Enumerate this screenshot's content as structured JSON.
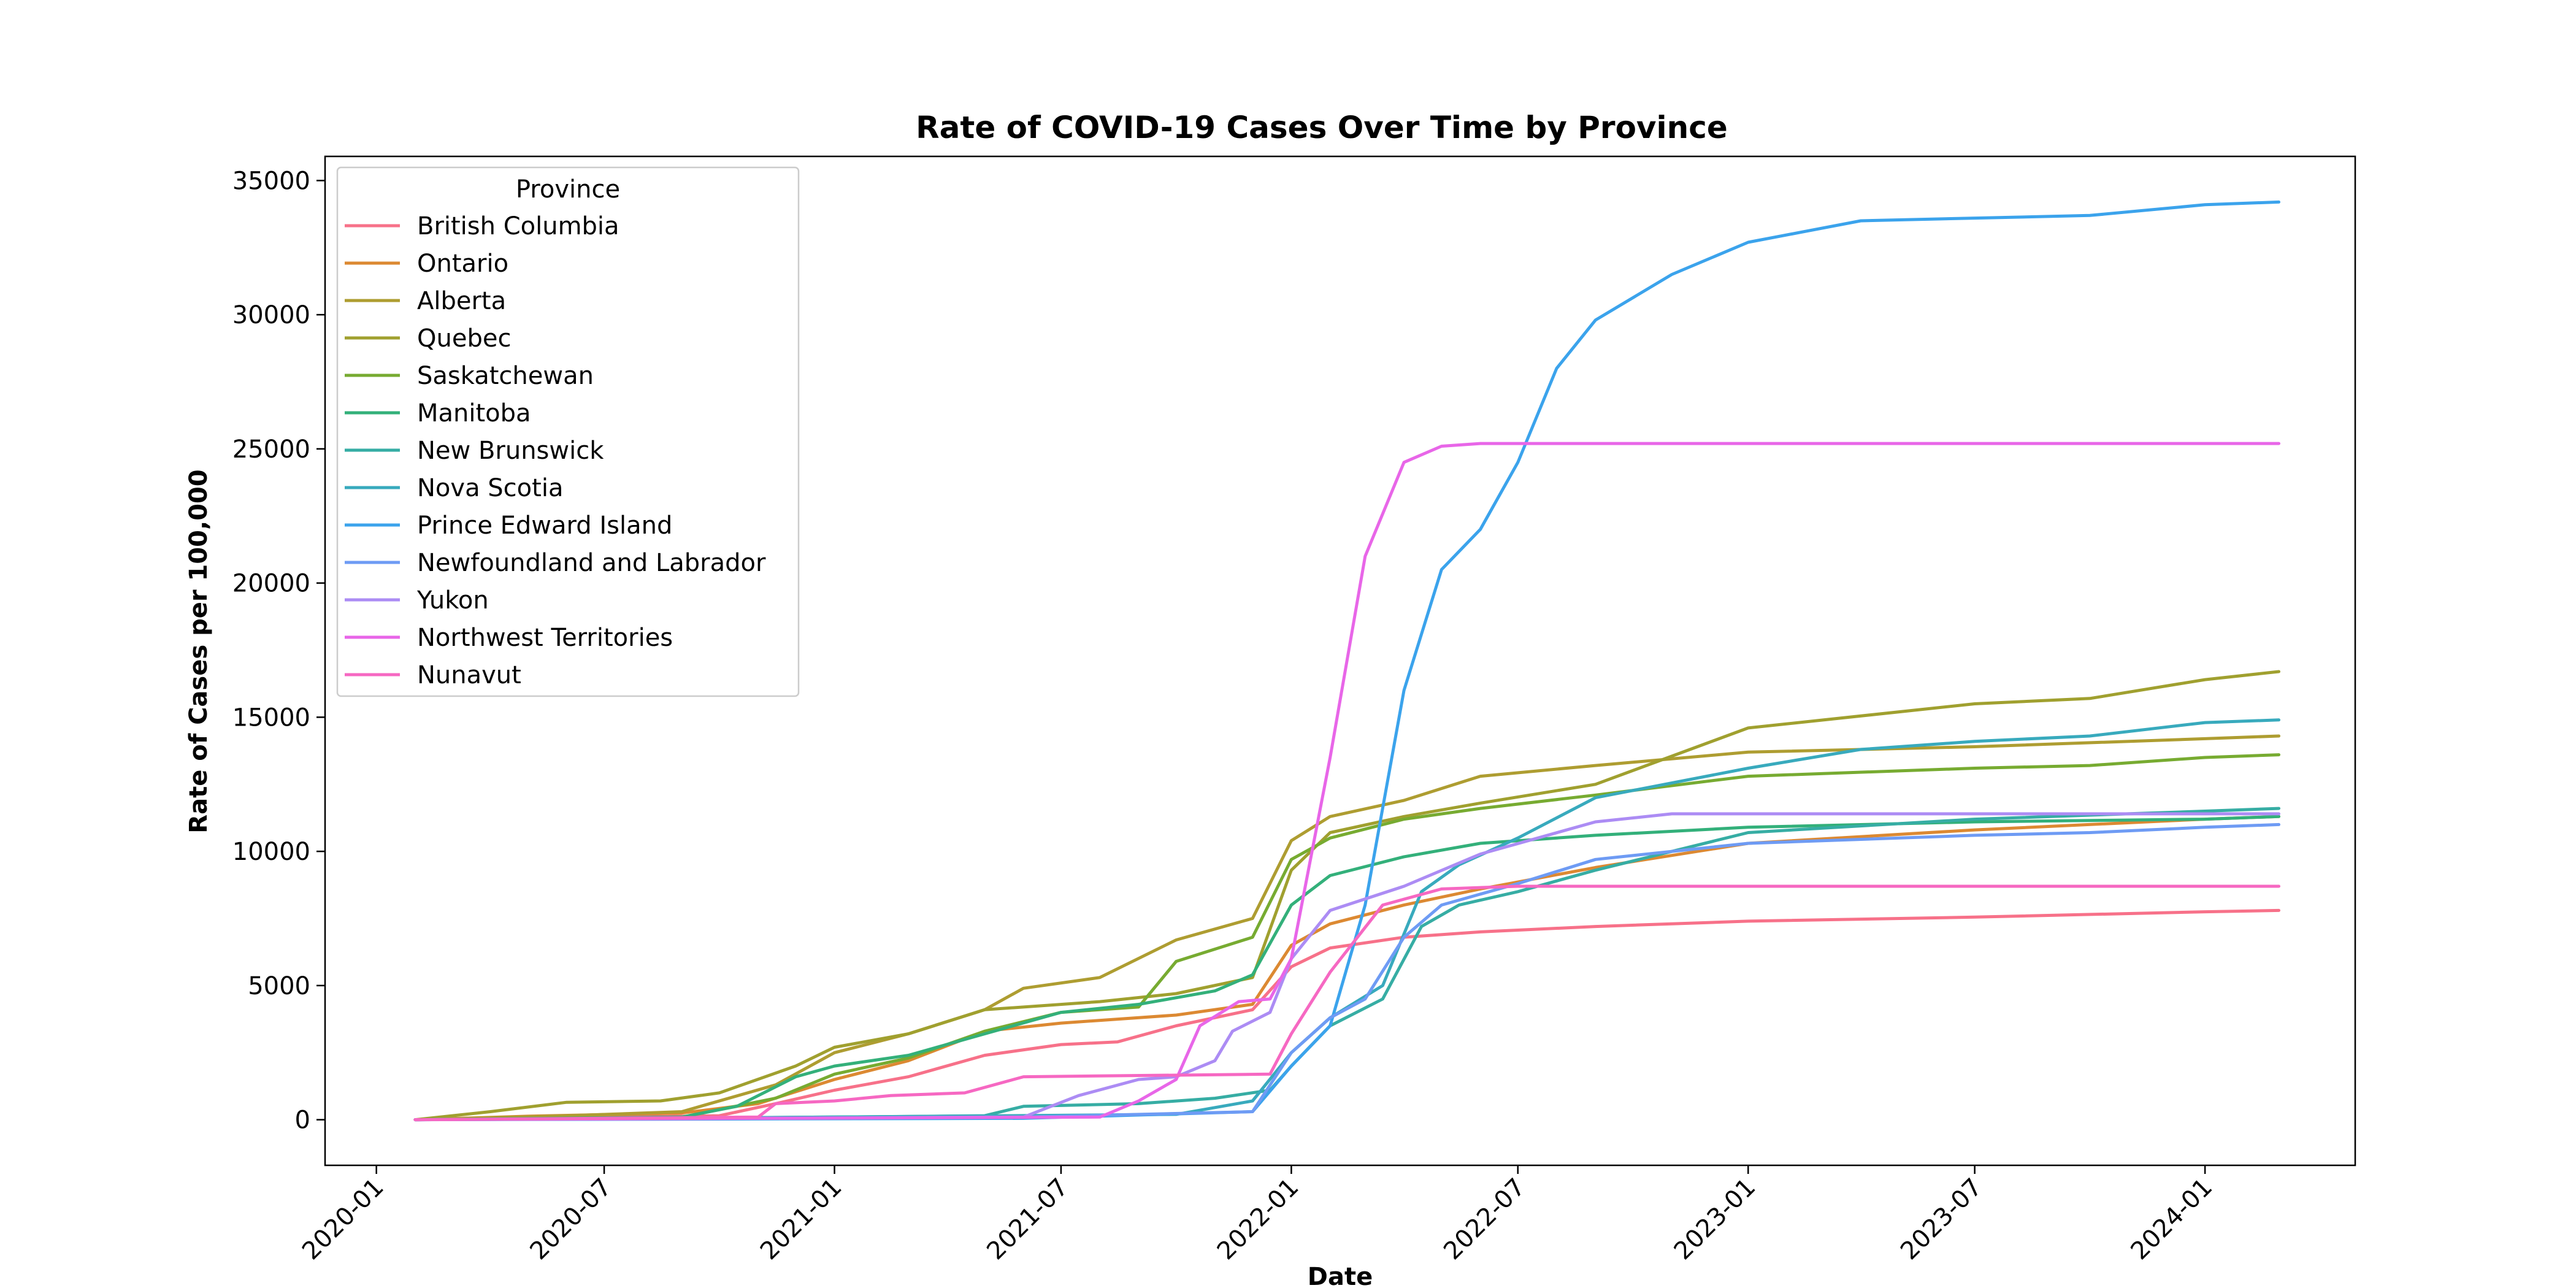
{
  "chart_data": {
    "type": "line",
    "title": "Rate of COVID-19 Cases Over Time by Province",
    "xlabel": "Date",
    "ylabel": "Rate of Cases per 100,000",
    "x_type": "date",
    "xlim": [
      "2019-11-21",
      "2024-04-30"
    ],
    "ylim": [
      -1700,
      35900
    ],
    "x_ticks": [
      "2020-01",
      "2020-07",
      "2021-01",
      "2021-07",
      "2022-01",
      "2022-07",
      "2023-01",
      "2023-07",
      "2024-01"
    ],
    "y_ticks": [
      0,
      5000,
      10000,
      15000,
      20000,
      25000,
      30000,
      35000
    ],
    "grid": false,
    "legend": {
      "title": "Province",
      "position": "top-left"
    },
    "series": [
      {
        "name": "British Columbia",
        "color": "#f77189",
        "points": [
          [
            "2020-02-01",
            0
          ],
          [
            "2020-10-01",
            150
          ],
          [
            "2020-11-15",
            600
          ],
          [
            "2021-01-01",
            1100
          ],
          [
            "2021-03-01",
            1600
          ],
          [
            "2021-05-01",
            2400
          ],
          [
            "2021-07-01",
            2800
          ],
          [
            "2021-08-15",
            2900
          ],
          [
            "2021-10-01",
            3500
          ],
          [
            "2021-12-01",
            4100
          ],
          [
            "2022-01-01",
            5700
          ],
          [
            "2022-02-01",
            6400
          ],
          [
            "2022-04-01",
            6800
          ],
          [
            "2022-06-01",
            7000
          ],
          [
            "2022-09-01",
            7200
          ],
          [
            "2023-01-01",
            7400
          ],
          [
            "2023-07-01",
            7550
          ],
          [
            "2024-01-01",
            7750
          ],
          [
            "2024-02-29",
            7800
          ]
        ]
      },
      {
        "name": "Ontario",
        "color": "#dc8932",
        "points": [
          [
            "2020-02-01",
            0
          ],
          [
            "2020-05-01",
            130
          ],
          [
            "2020-09-01",
            250
          ],
          [
            "2020-11-01",
            600
          ],
          [
            "2021-01-01",
            1500
          ],
          [
            "2021-03-01",
            2200
          ],
          [
            "2021-05-01",
            3300
          ],
          [
            "2021-07-01",
            3600
          ],
          [
            "2021-10-01",
            3900
          ],
          [
            "2021-12-01",
            4300
          ],
          [
            "2022-01-01",
            6500
          ],
          [
            "2022-02-01",
            7300
          ],
          [
            "2022-04-01",
            8000
          ],
          [
            "2022-06-01",
            8600
          ],
          [
            "2022-09-01",
            9400
          ],
          [
            "2023-01-01",
            10300
          ],
          [
            "2023-07-01",
            10800
          ],
          [
            "2024-01-01",
            11200
          ],
          [
            "2024-02-29",
            11300
          ]
        ]
      },
      {
        "name": "Alberta",
        "color": "#ae9d31",
        "points": [
          [
            "2020-02-01",
            0
          ],
          [
            "2020-06-01",
            150
          ],
          [
            "2020-09-01",
            300
          ],
          [
            "2020-11-15",
            1300
          ],
          [
            "2021-01-01",
            2500
          ],
          [
            "2021-03-01",
            3200
          ],
          [
            "2021-05-01",
            4100
          ],
          [
            "2021-06-01",
            4900
          ],
          [
            "2021-08-01",
            5300
          ],
          [
            "2021-10-01",
            6700
          ],
          [
            "2021-12-01",
            7500
          ],
          [
            "2022-01-01",
            10400
          ],
          [
            "2022-02-01",
            11300
          ],
          [
            "2022-04-01",
            11900
          ],
          [
            "2022-06-01",
            12800
          ],
          [
            "2022-09-01",
            13200
          ],
          [
            "2023-01-01",
            13700
          ],
          [
            "2023-07-01",
            13900
          ],
          [
            "2024-01-01",
            14200
          ],
          [
            "2024-02-29",
            14300
          ]
        ]
      },
      {
        "name": "Quebec",
        "color": "#a0a02f",
        "points": [
          [
            "2020-02-01",
            0
          ],
          [
            "2020-04-01",
            300
          ],
          [
            "2020-06-01",
            650
          ],
          [
            "2020-08-15",
            700
          ],
          [
            "2020-10-01",
            1000
          ],
          [
            "2020-12-01",
            2000
          ],
          [
            "2021-01-01",
            2700
          ],
          [
            "2021-03-01",
            3200
          ],
          [
            "2021-05-01",
            4100
          ],
          [
            "2021-08-01",
            4400
          ],
          [
            "2021-10-01",
            4700
          ],
          [
            "2021-12-01",
            5300
          ],
          [
            "2022-01-01",
            9300
          ],
          [
            "2022-02-01",
            10700
          ],
          [
            "2022-04-01",
            11300
          ],
          [
            "2022-06-01",
            11800
          ],
          [
            "2022-09-01",
            12500
          ],
          [
            "2023-01-01",
            14600
          ],
          [
            "2023-07-01",
            15500
          ],
          [
            "2023-10-01",
            15700
          ],
          [
            "2024-01-01",
            16400
          ],
          [
            "2024-02-29",
            16700
          ]
        ]
      },
      {
        "name": "Saskatchewan",
        "color": "#77ab31",
        "points": [
          [
            "2020-02-01",
            0
          ],
          [
            "2020-09-01",
            100
          ],
          [
            "2020-11-15",
            800
          ],
          [
            "2021-01-01",
            1700
          ],
          [
            "2021-03-01",
            2300
          ],
          [
            "2021-05-01",
            3300
          ],
          [
            "2021-07-01",
            4000
          ],
          [
            "2021-09-01",
            4200
          ],
          [
            "2021-10-01",
            5900
          ],
          [
            "2021-12-01",
            6800
          ],
          [
            "2022-01-01",
            9700
          ],
          [
            "2022-02-01",
            10500
          ],
          [
            "2022-04-01",
            11200
          ],
          [
            "2022-06-01",
            11600
          ],
          [
            "2022-09-01",
            12100
          ],
          [
            "2023-01-01",
            12800
          ],
          [
            "2023-07-01",
            13100
          ],
          [
            "2023-10-01",
            13200
          ],
          [
            "2024-01-01",
            13500
          ],
          [
            "2024-02-29",
            13600
          ]
        ]
      },
      {
        "name": "Manitoba",
        "color": "#33b07a",
        "points": [
          [
            "2020-02-01",
            0
          ],
          [
            "2020-09-01",
            100
          ],
          [
            "2020-10-15",
            500
          ],
          [
            "2020-12-01",
            1600
          ],
          [
            "2021-01-01",
            2000
          ],
          [
            "2021-03-01",
            2400
          ],
          [
            "2021-05-01",
            3200
          ],
          [
            "2021-07-01",
            4000
          ],
          [
            "2021-09-01",
            4300
          ],
          [
            "2021-11-01",
            4800
          ],
          [
            "2021-12-01",
            5400
          ],
          [
            "2022-01-01",
            8000
          ],
          [
            "2022-02-01",
            9100
          ],
          [
            "2022-04-01",
            9800
          ],
          [
            "2022-06-01",
            10300
          ],
          [
            "2022-09-01",
            10600
          ],
          [
            "2023-01-01",
            10900
          ],
          [
            "2023-07-01",
            11100
          ],
          [
            "2024-01-01",
            11200
          ],
          [
            "2024-02-29",
            11300
          ]
        ]
      },
      {
        "name": "New Brunswick",
        "color": "#36ada4",
        "points": [
          [
            "2020-02-01",
            0
          ],
          [
            "2021-01-01",
            100
          ],
          [
            "2021-05-01",
            150
          ],
          [
            "2021-06-01",
            500
          ],
          [
            "2021-09-01",
            600
          ],
          [
            "2021-11-01",
            800
          ],
          [
            "2021-12-15",
            1100
          ],
          [
            "2022-01-01",
            2000
          ],
          [
            "2022-02-01",
            3500
          ],
          [
            "2022-03-15",
            4500
          ],
          [
            "2022-04-15",
            7200
          ],
          [
            "2022-05-15",
            8000
          ],
          [
            "2022-07-01",
            8500
          ],
          [
            "2022-09-01",
            9300
          ],
          [
            "2023-01-01",
            10700
          ],
          [
            "2023-07-01",
            11200
          ],
          [
            "2024-01-01",
            11500
          ],
          [
            "2024-02-29",
            11600
          ]
        ]
      },
      {
        "name": "Nova Scotia",
        "color": "#38aabd",
        "points": [
          [
            "2020-02-01",
            0
          ],
          [
            "2021-01-01",
            100
          ],
          [
            "2021-10-01",
            200
          ],
          [
            "2021-12-01",
            700
          ],
          [
            "2022-01-01",
            2500
          ],
          [
            "2022-02-01",
            3800
          ],
          [
            "2022-03-15",
            5000
          ],
          [
            "2022-04-15",
            8500
          ],
          [
            "2022-05-15",
            9500
          ],
          [
            "2022-07-01",
            10500
          ],
          [
            "2022-09-01",
            12000
          ],
          [
            "2023-01-01",
            13100
          ],
          [
            "2023-04-01",
            13800
          ],
          [
            "2023-07-01",
            14100
          ],
          [
            "2023-10-01",
            14300
          ],
          [
            "2024-01-01",
            14800
          ],
          [
            "2024-02-29",
            14900
          ]
        ]
      },
      {
        "name": "Prince Edward Island",
        "color": "#3ba3ec",
        "points": [
          [
            "2020-02-01",
            0
          ],
          [
            "2021-06-01",
            50
          ],
          [
            "2021-12-01",
            300
          ],
          [
            "2022-01-01",
            2000
          ],
          [
            "2022-02-01",
            3500
          ],
          [
            "2022-03-01",
            8000
          ],
          [
            "2022-04-01",
            16000
          ],
          [
            "2022-05-01",
            20500
          ],
          [
            "2022-06-01",
            22000
          ],
          [
            "2022-07-01",
            24500
          ],
          [
            "2022-08-01",
            28000
          ],
          [
            "2022-09-01",
            29800
          ],
          [
            "2022-11-01",
            31500
          ],
          [
            "2023-01-01",
            32700
          ],
          [
            "2023-04-01",
            33500
          ],
          [
            "2023-07-01",
            33600
          ],
          [
            "2023-10-01",
            33700
          ],
          [
            "2024-01-01",
            34100
          ],
          [
            "2024-02-29",
            34200
          ]
        ]
      },
      {
        "name": "Newfoundland and Labrador",
        "color": "#6e9bf4",
        "points": [
          [
            "2020-02-01",
            0
          ],
          [
            "2021-06-01",
            100
          ],
          [
            "2021-12-01",
            300
          ],
          [
            "2022-01-01",
            2500
          ],
          [
            "2022-02-01",
            3800
          ],
          [
            "2022-03-01",
            4500
          ],
          [
            "2022-04-01",
            6800
          ],
          [
            "2022-05-01",
            8000
          ],
          [
            "2022-07-01",
            8800
          ],
          [
            "2022-09-01",
            9700
          ],
          [
            "2023-01-01",
            10300
          ],
          [
            "2023-07-01",
            10600
          ],
          [
            "2023-10-01",
            10700
          ],
          [
            "2024-01-01",
            10900
          ],
          [
            "2024-02-29",
            11000
          ]
        ]
      },
      {
        "name": "Yukon",
        "color": "#ac8cf4",
        "points": [
          [
            "2020-02-01",
            0
          ],
          [
            "2021-06-01",
            100
          ],
          [
            "2021-07-15",
            900
          ],
          [
            "2021-09-01",
            1500
          ],
          [
            "2021-10-01",
            1600
          ],
          [
            "2021-11-01",
            2200
          ],
          [
            "2021-11-15",
            3300
          ],
          [
            "2021-12-15",
            4000
          ],
          [
            "2022-01-01",
            6000
          ],
          [
            "2022-02-01",
            7800
          ],
          [
            "2022-04-01",
            8700
          ],
          [
            "2022-06-01",
            9900
          ],
          [
            "2022-09-01",
            11100
          ],
          [
            "2022-11-01",
            11400
          ],
          [
            "2024-02-29",
            11400
          ]
        ]
      },
      {
        "name": "Northwest Territories",
        "color": "#e866e8",
        "points": [
          [
            "2020-02-01",
            0
          ],
          [
            "2021-08-01",
            100
          ],
          [
            "2021-09-01",
            700
          ],
          [
            "2021-10-01",
            1500
          ],
          [
            "2021-10-20",
            3500
          ],
          [
            "2021-11-20",
            4400
          ],
          [
            "2021-12-15",
            4500
          ],
          [
            "2022-01-01",
            6000
          ],
          [
            "2022-02-01",
            13500
          ],
          [
            "2022-03-01",
            21000
          ],
          [
            "2022-04-01",
            24500
          ],
          [
            "2022-05-01",
            25100
          ],
          [
            "2022-06-01",
            25200
          ],
          [
            "2024-02-29",
            25200
          ]
        ]
      },
      {
        "name": "Nunavut",
        "color": "#f668c2",
        "points": [
          [
            "2020-02-01",
            0
          ],
          [
            "2020-11-01",
            100
          ],
          [
            "2020-11-15",
            600
          ],
          [
            "2021-01-01",
            700
          ],
          [
            "2021-02-15",
            900
          ],
          [
            "2021-04-15",
            1000
          ],
          [
            "2021-06-01",
            1600
          ],
          [
            "2021-12-15",
            1700
          ],
          [
            "2022-01-01",
            3200
          ],
          [
            "2022-02-01",
            5500
          ],
          [
            "2022-03-15",
            8000
          ],
          [
            "2022-05-01",
            8600
          ],
          [
            "2022-07-01",
            8700
          ],
          [
            "2024-02-29",
            8700
          ]
        ]
      }
    ]
  }
}
